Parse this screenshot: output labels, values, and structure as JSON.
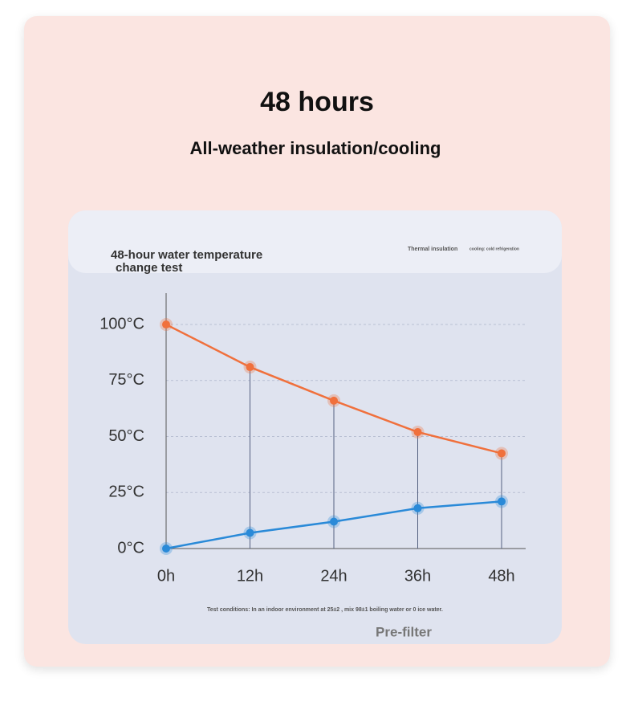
{
  "header": {
    "title": "48 hours",
    "subtitle": "All-weather insulation/cooling"
  },
  "chart_data": {
    "type": "line",
    "title": "48-hour water temperature\nchange test",
    "categories": [
      "0h",
      "12h",
      "24h",
      "36h",
      "48h"
    ],
    "series": [
      {
        "name": "Thermal insulation",
        "color": "#f0703c",
        "values": [
          100,
          81,
          66,
          52,
          42.5
        ]
      },
      {
        "name": "cooling: cold refrigeration",
        "color": "#2a8ad8",
        "values": [
          0,
          7,
          12,
          18,
          21
        ]
      }
    ],
    "ylim": [
      0,
      114
    ],
    "yticks": [
      {
        "value": 0,
        "label": "0°C"
      },
      {
        "value": 25,
        "label": "25°C"
      },
      {
        "value": 50,
        "label": "50°C"
      },
      {
        "value": 75,
        "label": "75°C"
      },
      {
        "value": 100,
        "label": "100°C"
      }
    ],
    "grid": true,
    "note": "Test conditions: In an indoor environment at 25±2 , mix 98±1 boiling water or 0 ice water.",
    "footer": "Pre-filter"
  }
}
